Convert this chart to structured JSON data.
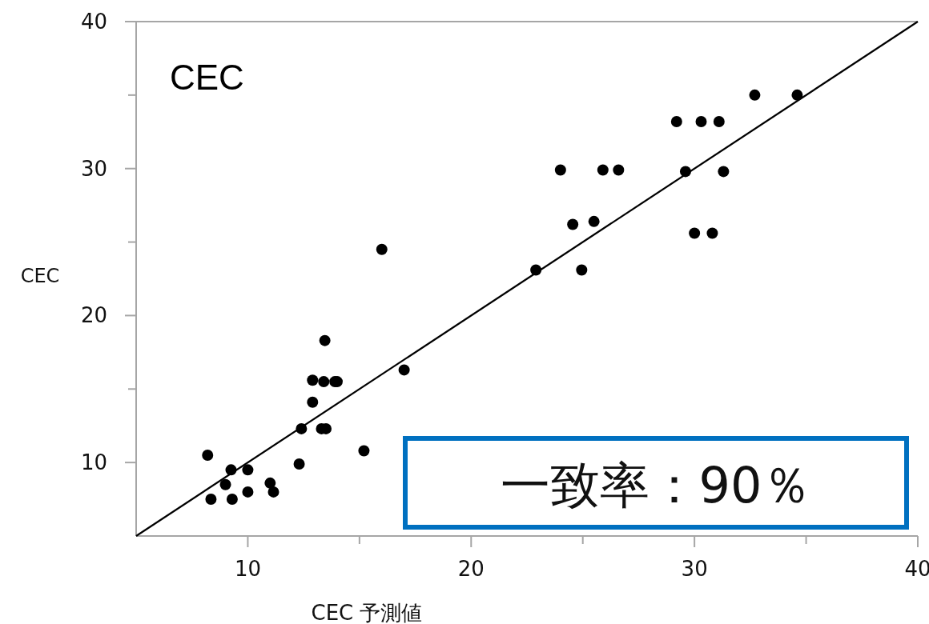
{
  "chart_data": {
    "type": "scatter",
    "title": "CEC",
    "xlabel": "CEC 予測値",
    "ylabel": "CEC",
    "annotations": [
      "一致率：90％"
    ],
    "xlim": [
      5,
      40
    ],
    "ylim": [
      5,
      40
    ],
    "xticks": [
      10,
      {
        "value": 15,
        "label": null
      },
      20,
      {
        "value": 25,
        "label": null
      },
      30,
      {
        "value": 35,
        "label": null
      },
      40
    ],
    "yticks": [
      10,
      {
        "value": 15,
        "label": null
      },
      20,
      {
        "value": 25,
        "label": null
      },
      30,
      {
        "value": 35,
        "label": null
      },
      40
    ],
    "grid": false,
    "marker": "circle",
    "series": [
      {
        "color": "#000000",
        "x": [
          8.2,
          8.35,
          9.3,
          9.25,
          9.0,
          10.0,
          10.0,
          11.0,
          11.15,
          12.3,
          12.4,
          12.9,
          12.9,
          13.4,
          13.9,
          14.0,
          13.45,
          13.3,
          13.5,
          15.2,
          16.0,
          17.0,
          22.9,
          24.95,
          24.55,
          25.5,
          24.0,
          25.9,
          26.6,
          29.6,
          31.3,
          30.0,
          30.8,
          29.2,
          30.3,
          31.1,
          32.7,
          34.6
        ],
        "values": [
          10.5,
          7.5,
          7.5,
          9.5,
          8.5,
          9.5,
          8.0,
          8.6,
          8.0,
          9.9,
          12.3,
          14.1,
          15.6,
          15.5,
          15.5,
          15.5,
          18.3,
          12.3,
          12.3,
          10.8,
          24.5,
          16.3,
          23.1,
          23.1,
          26.2,
          26.4,
          29.9,
          29.9,
          29.9,
          29.8,
          29.8,
          25.6,
          25.6,
          33.2,
          33.2,
          33.2,
          35.0,
          35.0
        ]
      },
      {
        "type": "line",
        "color": "#000000",
        "line_style": "solid",
        "marker": "none",
        "x": [
          5,
          40
        ],
        "values": [
          5,
          40
        ]
      }
    ]
  }
}
